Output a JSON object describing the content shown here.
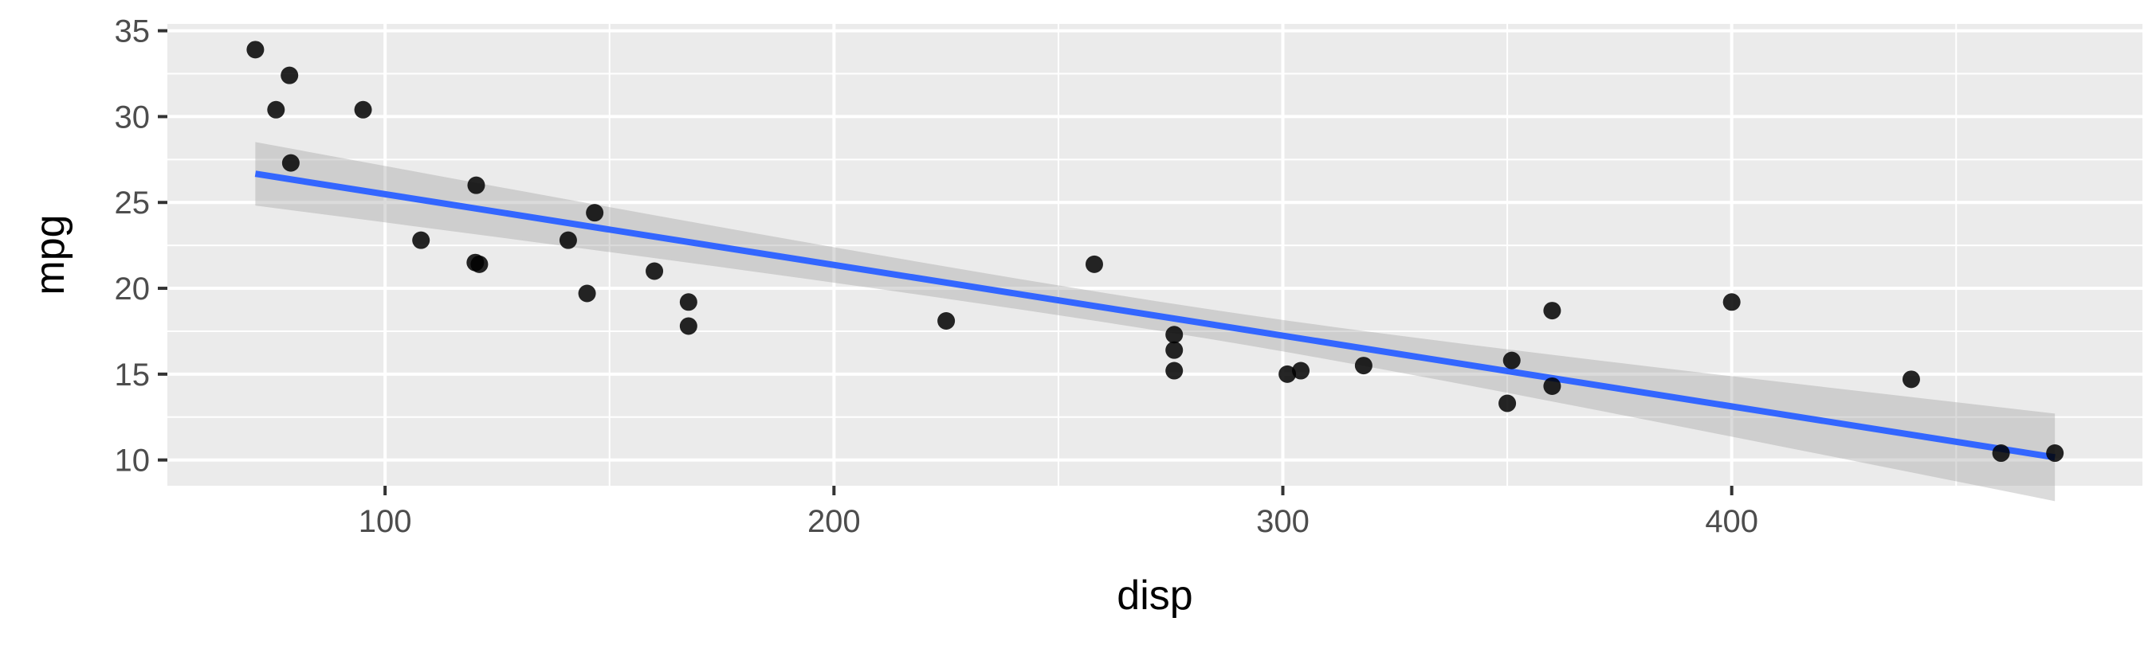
{
  "chart_data": {
    "type": "scatter",
    "title": "",
    "xlabel": "disp",
    "ylabel": "mpg",
    "xlim": [
      51.5,
      491.5
    ],
    "ylim": [
      8.5,
      35.4
    ],
    "x_ticks": [
      100,
      200,
      300,
      400
    ],
    "y_ticks": [
      10,
      15,
      20,
      25,
      30,
      35
    ],
    "grid": true,
    "legend": "none",
    "colors": {
      "panel": "#ebebeb",
      "grid_major": "#ffffff",
      "point": "#000000",
      "fit_line": "#3366ff",
      "ribbon": "#999999",
      "tick_text": "#4d4d4d",
      "axis_title": "#000000"
    },
    "points": [
      {
        "x": 71.1,
        "y": 33.9
      },
      {
        "x": 75.7,
        "y": 30.4
      },
      {
        "x": 78.7,
        "y": 32.4
      },
      {
        "x": 79.0,
        "y": 27.3
      },
      {
        "x": 95.1,
        "y": 30.4
      },
      {
        "x": 108.0,
        "y": 22.8
      },
      {
        "x": 120.1,
        "y": 21.5
      },
      {
        "x": 120.3,
        "y": 26.0
      },
      {
        "x": 121.0,
        "y": 21.4
      },
      {
        "x": 140.8,
        "y": 22.8
      },
      {
        "x": 145.0,
        "y": 19.7
      },
      {
        "x": 146.7,
        "y": 24.4
      },
      {
        "x": 160.0,
        "y": 21.0
      },
      {
        "x": 167.6,
        "y": 19.2
      },
      {
        "x": 167.6,
        "y": 17.8
      },
      {
        "x": 225.0,
        "y": 18.1
      },
      {
        "x": 258.0,
        "y": 21.4
      },
      {
        "x": 275.8,
        "y": 16.4
      },
      {
        "x": 275.8,
        "y": 17.3
      },
      {
        "x": 275.8,
        "y": 15.2
      },
      {
        "x": 301.0,
        "y": 15.0
      },
      {
        "x": 304.0,
        "y": 15.2
      },
      {
        "x": 318.0,
        "y": 15.5
      },
      {
        "x": 350.0,
        "y": 13.3
      },
      {
        "x": 351.0,
        "y": 15.8
      },
      {
        "x": 360.0,
        "y": 14.3
      },
      {
        "x": 360.0,
        "y": 18.7
      },
      {
        "x": 400.0,
        "y": 19.2
      },
      {
        "x": 440.0,
        "y": 14.7
      },
      {
        "x": 460.0,
        "y": 10.4
      },
      {
        "x": 472.0,
        "y": 10.4
      }
    ],
    "fit": {
      "method": "lm",
      "x_range": [
        71.1,
        472.0
      ],
      "intercept": 29.6,
      "slope": -0.0412,
      "ribbon_start": [
        24.8,
        28.5
      ],
      "ribbon_end": [
        7.6,
        12.7
      ]
    }
  }
}
